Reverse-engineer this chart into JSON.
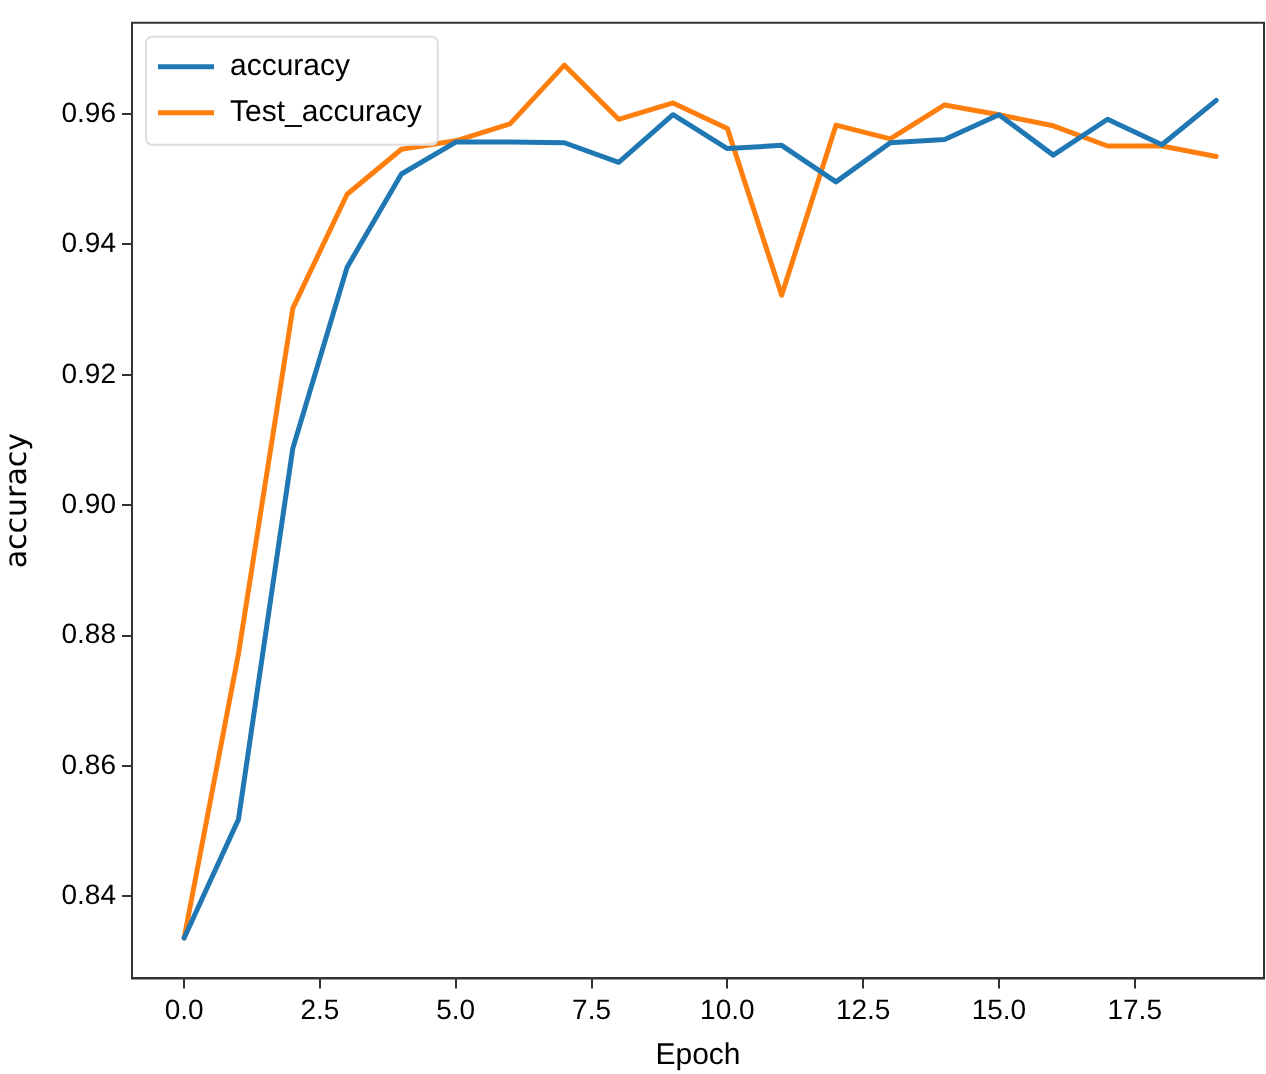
{
  "chart_data": {
    "type": "line",
    "xlabel": "Epoch",
    "ylabel": "accuracy",
    "x": [
      0,
      1,
      2,
      3,
      4,
      5,
      6,
      7,
      8,
      9,
      10,
      11,
      12,
      13,
      14,
      15,
      16,
      17,
      18,
      19
    ],
    "series": [
      {
        "name": "accuracy",
        "color": "#1f77b4",
        "values": [
          0.8336,
          0.8518,
          0.9087,
          0.9365,
          0.9508,
          0.9557,
          0.9557,
          0.9556,
          0.9526,
          0.9599,
          0.9547,
          0.9552,
          0.9496,
          0.9556,
          0.9561,
          0.9599,
          0.9537,
          0.9592,
          0.9553,
          0.9621
        ]
      },
      {
        "name": "Test_accuracy",
        "color": "#ff7f0e",
        "values": [
          0.8336,
          0.8772,
          0.9302,
          0.9477,
          0.9546,
          0.9559,
          0.9585,
          0.9675,
          0.9592,
          0.9617,
          0.9578,
          0.9322,
          0.9583,
          0.9562,
          0.9614,
          0.9599,
          0.9582,
          0.9551,
          0.9551,
          0.9535
        ]
      }
    ],
    "xlim": [
      -0.96,
      19.88
    ],
    "xticks": [
      {
        "value": 0,
        "label": "0.0"
      },
      {
        "value": 2.5,
        "label": "2.5"
      },
      {
        "value": 5,
        "label": "5.0"
      },
      {
        "value": 7.5,
        "label": "7.5"
      },
      {
        "value": 10,
        "label": "10.0"
      },
      {
        "value": 12.5,
        "label": "12.5"
      },
      {
        "value": 15,
        "label": "15.0"
      },
      {
        "value": 17.5,
        "label": "17.5"
      }
    ],
    "ylim": [
      0.8274,
      0.974
    ],
    "yticks": [
      {
        "value": 0.84,
        "label": "0.84"
      },
      {
        "value": 0.86,
        "label": "0.86"
      },
      {
        "value": 0.88,
        "label": "0.88"
      },
      {
        "value": 0.9,
        "label": "0.90"
      },
      {
        "value": 0.92,
        "label": "0.92"
      },
      {
        "value": 0.94,
        "label": "0.94"
      },
      {
        "value": 0.96,
        "label": "0.96"
      }
    ],
    "grid": false,
    "legend": "top left",
    "marker": "none",
    "line_style": "solid"
  }
}
